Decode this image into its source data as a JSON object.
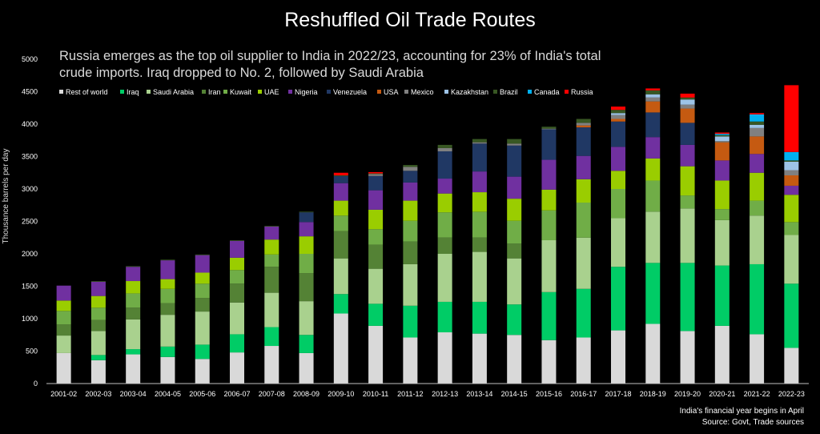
{
  "chart_data": {
    "type": "bar",
    "stacked": true,
    "title": "Reshuffled Oil Trade Routes",
    "subtitle_lines": [
      "Russia emerges as the top oil supplier to India in 2022/23, accounting for 23% of India's total",
      "crude imports.  Iraq dropped to  No. 2, followed by Saudi Arabia"
    ],
    "ylabel": "Thousance barrels per day",
    "xlabel": "",
    "ylim": [
      0,
      5000
    ],
    "yticks": [
      "0",
      "500",
      "1000",
      "1500",
      "2000",
      "2500",
      "3000",
      "3500",
      "4000",
      "4500",
      "5000"
    ],
    "ytick_values": [
      0,
      500,
      1000,
      1500,
      2000,
      2500,
      3000,
      3500,
      4000,
      4500,
      5000
    ],
    "grid": false,
    "legend_position": "top",
    "categories": [
      "2001-02",
      "2002-03",
      "2003-04",
      "2004-05",
      "2005-06",
      "2006-07",
      "2007-08",
      "2008-09",
      "2009-10",
      "2010-11",
      "2011-12",
      "2012-13",
      "2013-14",
      "2014-15",
      "2015-16",
      "2016-17",
      "2017-18",
      "2018-19",
      "2019-20",
      "2020-21",
      "2021-22",
      "2022-23"
    ],
    "series": [
      {
        "name": "Rest of world",
        "color": "#d9d9d9",
        "values": [
          470,
          360,
          450,
          410,
          380,
          480,
          580,
          470,
          1080,
          890,
          710,
          790,
          770,
          750,
          670,
          710,
          820,
          920,
          810,
          890,
          760,
          550
        ]
      },
      {
        "name": "Iraq",
        "color": "#00cc66",
        "values": [
          0,
          80,
          80,
          160,
          220,
          280,
          290,
          280,
          300,
          340,
          490,
          470,
          490,
          470,
          740,
          750,
          980,
          940,
          1050,
          930,
          1080,
          990
        ]
      },
      {
        "name": "Saudi Arabia",
        "color": "#a9d18e",
        "values": [
          270,
          370,
          460,
          490,
          510,
          490,
          530,
          520,
          550,
          540,
          640,
          740,
          770,
          710,
          800,
          790,
          750,
          790,
          840,
          700,
          750,
          750
        ]
      },
      {
        "name": "Iran",
        "color": "#548235",
        "values": [
          170,
          170,
          180,
          180,
          210,
          290,
          400,
          430,
          420,
          370,
          350,
          250,
          220,
          230,
          0,
          0,
          0,
          0,
          0,
          0,
          0,
          0
        ]
      },
      {
        "name": "Kuwait",
        "color": "#70ad47",
        "values": [
          210,
          190,
          220,
          220,
          220,
          210,
          190,
          300,
          240,
          240,
          320,
          390,
          400,
          350,
          460,
          540,
          450,
          480,
          200,
          170,
          230,
          200
        ]
      },
      {
        "name": "UAE",
        "color": "#9acd00",
        "values": [
          160,
          180,
          190,
          150,
          170,
          190,
          230,
          270,
          230,
          300,
          310,
          290,
          300,
          340,
          320,
          360,
          280,
          340,
          450,
          440,
          430,
          420
        ]
      },
      {
        "name": "Nigeria",
        "color": "#7030a0",
        "values": [
          230,
          220,
          220,
          290,
          270,
          260,
          200,
          220,
          270,
          300,
          280,
          230,
          320,
          340,
          460,
          360,
          370,
          330,
          330,
          310,
          290,
          140
        ]
      },
      {
        "name": "Venezuela",
        "color": "#203864",
        "values": [
          0,
          0,
          0,
          0,
          0,
          0,
          0,
          150,
          110,
          220,
          180,
          420,
          430,
          480,
          470,
          440,
          390,
          380,
          340,
          0,
          0,
          0
        ]
      },
      {
        "name": "USA",
        "color": "#c55a11",
        "values": [
          0,
          0,
          0,
          0,
          0,
          0,
          0,
          0,
          0,
          0,
          0,
          0,
          0,
          0,
          0,
          30,
          40,
          170,
          220,
          280,
          270,
          160
        ]
      },
      {
        "name": "Mexico",
        "color": "#808080",
        "values": [
          0,
          0,
          0,
          0,
          0,
          0,
          0,
          0,
          0,
          30,
          60,
          50,
          20,
          30,
          10,
          40,
          60,
          60,
          60,
          20,
          130,
          80
        ]
      },
      {
        "name": "Kazakhstan",
        "color": "#9dc3e6",
        "values": [
          0,
          0,
          0,
          0,
          0,
          0,
          0,
          0,
          0,
          0,
          0,
          0,
          0,
          0,
          0,
          0,
          30,
          50,
          80,
          70,
          50,
          130
        ]
      },
      {
        "name": "Brazil",
        "color": "#385723",
        "values": [
          0,
          10,
          10,
          10,
          10,
          10,
          10,
          10,
          10,
          10,
          30,
          50,
          50,
          70,
          30,
          60,
          50,
          60,
          30,
          20,
          50,
          20
        ]
      },
      {
        "name": "Canada",
        "color": "#00b0f0",
        "values": [
          0,
          0,
          0,
          0,
          0,
          0,
          0,
          0,
          0,
          0,
          0,
          0,
          0,
          0,
          0,
          0,
          0,
          0,
          0,
          20,
          110,
          130
        ]
      },
      {
        "name": "Russia",
        "color": "#ff0000",
        "values": [
          0,
          0,
          0,
          0,
          0,
          0,
          0,
          0,
          40,
          20,
          0,
          0,
          0,
          0,
          0,
          0,
          50,
          30,
          60,
          20,
          20,
          1030
        ]
      }
    ],
    "notes": [
      "India's financial year begins in April",
      "Source: Govt,  Trade sources"
    ]
  }
}
